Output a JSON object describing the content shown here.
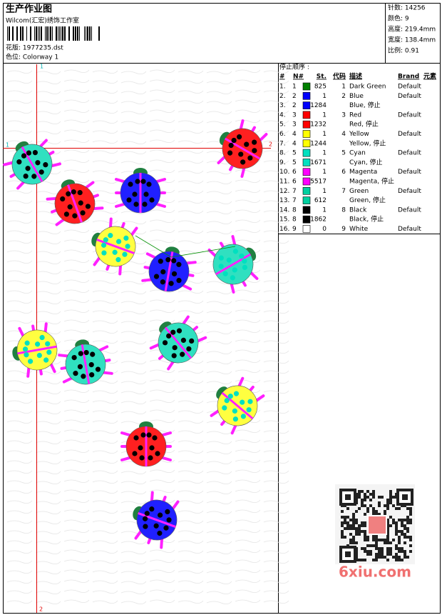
{
  "header": {
    "title": "生产作业图",
    "company": "Wilcom(汇宏)绣饰工作室",
    "design": "花版: 1977235.dst",
    "colorway": "色位: Colorway 1"
  },
  "info": [
    "针数: 14256",
    "颜色: 9",
    "高度: 219.4mm",
    "宽度: 138.4mm",
    "比例: 0.91"
  ],
  "stop_sequence": {
    "title": "停止顺序 :",
    "columns": [
      "#",
      "N#",
      "St.",
      "代码",
      "描述",
      "Brand",
      "元素"
    ],
    "rows": [
      {
        "no": "1.",
        "n": 1,
        "color": "#008000",
        "st": 825,
        "code": 1,
        "desc": "Dark Green",
        "brand": "Default"
      },
      {
        "no": "2.",
        "n": 2,
        "color": "#0000ff",
        "st": 1,
        "code": 2,
        "desc": "Blue",
        "brand": "Default"
      },
      {
        "no": "3.",
        "n": 2,
        "color": "#0000ff",
        "st": 1284,
        "desc": "Blue, 停止"
      },
      {
        "no": "4.",
        "n": 3,
        "color": "#ff0000",
        "st": 1,
        "code": 3,
        "desc": "Red",
        "brand": "Default"
      },
      {
        "no": "5.",
        "n": 3,
        "color": "#ff0000",
        "st": 1232,
        "desc": "Red, 停止"
      },
      {
        "no": "6.",
        "n": 4,
        "color": "#ffff00",
        "st": 1,
        "code": 4,
        "desc": "Yellow",
        "brand": "Default"
      },
      {
        "no": "7.",
        "n": 4,
        "color": "#ffff00",
        "st": 1244,
        "desc": "Yellow, 停止"
      },
      {
        "no": "8.",
        "n": 5,
        "color": "#00e0c0",
        "st": 1,
        "code": 5,
        "desc": "Cyan",
        "brand": "Default"
      },
      {
        "no": "9.",
        "n": 5,
        "color": "#00e0c0",
        "st": 1671,
        "desc": "Cyan, 停止"
      },
      {
        "no": "10.",
        "n": 6,
        "color": "#ff00ff",
        "st": 1,
        "code": 6,
        "desc": "Magenta",
        "brand": "Default"
      },
      {
        "no": "11.",
        "n": 6,
        "color": "#ff00ff",
        "st": 5517,
        "desc": "Magenta, 停止"
      },
      {
        "no": "12.",
        "n": 7,
        "color": "#00d0a0",
        "st": 1,
        "code": 7,
        "desc": "Green",
        "brand": "Default"
      },
      {
        "no": "13.",
        "n": 7,
        "color": "#00d0a0",
        "st": 612,
        "desc": "Green, 停止"
      },
      {
        "no": "14.",
        "n": 8,
        "color": "#000000",
        "st": 1,
        "code": 8,
        "desc": "Black",
        "brand": "Default"
      },
      {
        "no": "15.",
        "n": 8,
        "color": "#000000",
        "st": 1862,
        "desc": "Black, 停止"
      },
      {
        "no": "16.",
        "n": 9,
        "color": "#ffffff",
        "st": 0,
        "code": 9,
        "desc": "White",
        "brand": "Default"
      }
    ]
  },
  "axis_markers": {
    "v_top": "1",
    "v_bottom": "2",
    "h_left": "1",
    "h_right": "2"
  },
  "watermark": "6xiu.com"
}
